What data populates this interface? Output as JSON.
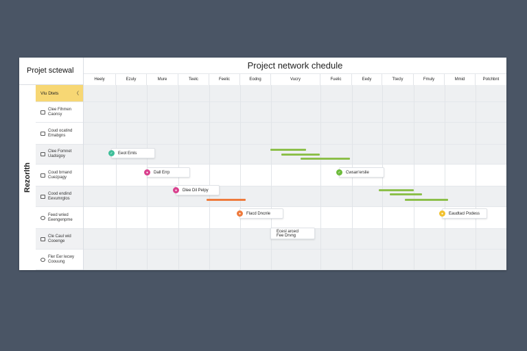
{
  "panel": {
    "left_title": "Projet sctewal",
    "main_title": "Project network chedule",
    "vertical_label": "Rezorlth"
  },
  "columns": [
    "Heely",
    "Ezuly",
    "Mure",
    "Teelc",
    "Feelic",
    "Eodng",
    "Vucry",
    "Fuelic",
    "Eedy",
    "Ttecly",
    "Fmuly",
    "Mmid",
    "Potchbnt"
  ],
  "rows": [
    {
      "line1": "Vlu Dtets",
      "line2": ""
    },
    {
      "line1": "Clee Fihmen",
      "line2": "Caonsy"
    },
    {
      "line1": "Coud ocatind",
      "line2": "Emabgns"
    },
    {
      "line1": "Clee Fomnet",
      "line2": "Uadsigoy"
    },
    {
      "line1": "Coud brnand",
      "line2": "Cuezpagy"
    },
    {
      "line1": "Cood endind",
      "line2": "Eevumrglos"
    },
    {
      "line1": "Feed wried",
      "line2": "Eeengenpme"
    },
    {
      "line1": "Cle Caul wid",
      "line2": "Cooenge"
    },
    {
      "line1": "Fler Eer lecwy",
      "line2": "Coouung"
    }
  ],
  "milestones": [
    {
      "label": "Eeot Emls",
      "color": "#3fbf9a"
    },
    {
      "label": "Dall Errp",
      "color": "#d9418e"
    },
    {
      "label": "Dlee Dil Pelpy",
      "color": "#d9418e"
    },
    {
      "label": "Cwsan'erslie",
      "color": "#6dbb3c"
    },
    {
      "label": "Flacd Dncnle",
      "color": "#ee7a3c"
    },
    {
      "label": "Eaudtacl Podess",
      "color": "#f2c12e"
    },
    {
      "label": "Ecesl arcecl",
      "label2": "Fee Drvng",
      "color": ""
    }
  ],
  "colors": {
    "background": "#4a5565",
    "selected_row": "#f7d774",
    "green_bar": "#8cbf4a",
    "orange_bar": "#ee7a3c"
  }
}
